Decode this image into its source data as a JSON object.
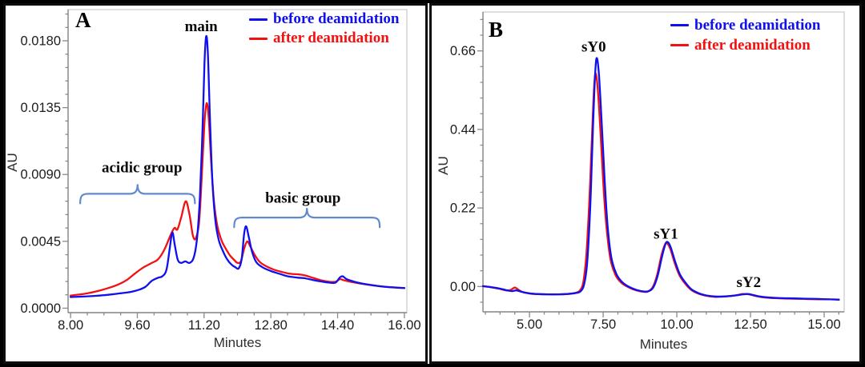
{
  "chart_data": [
    {
      "type": "line",
      "panel_label": "A",
      "xlabel": "Minutes",
      "ylabel": "AU",
      "xlim": [
        7.94,
        16.06
      ],
      "ylim": [
        -0.0003,
        0.0201
      ],
      "grid": false,
      "legend_position": "top-right",
      "x_major_ticks": [
        {
          "v": 8.0,
          "label": "8.00"
        },
        {
          "v": 9.6,
          "label": "9.60"
        },
        {
          "v": 11.2,
          "label": "11.20"
        },
        {
          "v": 12.8,
          "label": "12.80"
        },
        {
          "v": 14.4,
          "label": "14.40"
        },
        {
          "v": 16.0,
          "label": "16.00"
        }
      ],
      "x_minor_step": 0.4,
      "y_major_ticks": [
        {
          "v": 0.0,
          "label": "0.0000"
        },
        {
          "v": 0.0045,
          "label": "0.0045"
        },
        {
          "v": 0.009,
          "label": "0.0090"
        },
        {
          "v": 0.0135,
          "label": "0.0135"
        },
        {
          "v": 0.018,
          "label": "0.0180"
        }
      ],
      "y_minor_step": 0.0009,
      "series": [
        {
          "name": "before deamidation",
          "color": "#1010ee",
          "points": [
            [
              8.0,
              0.00075
            ],
            [
              8.3,
              0.00078
            ],
            [
              8.6,
              0.00083
            ],
            [
              8.9,
              0.0009
            ],
            [
              9.2,
              0.001
            ],
            [
              9.45,
              0.0011
            ],
            [
              9.65,
              0.00125
            ],
            [
              9.8,
              0.00145
            ],
            [
              9.95,
              0.00185
            ],
            [
              10.1,
              0.00205
            ],
            [
              10.2,
              0.00215
            ],
            [
              10.3,
              0.0026
            ],
            [
              10.38,
              0.0041
            ],
            [
              10.44,
              0.0051
            ],
            [
              10.5,
              0.0042
            ],
            [
              10.57,
              0.00325
            ],
            [
              10.65,
              0.00305
            ],
            [
              10.75,
              0.00315
            ],
            [
              10.85,
              0.00305
            ],
            [
              10.95,
              0.0034
            ],
            [
              11.03,
              0.0047
            ],
            [
              11.1,
              0.0075
            ],
            [
              11.16,
              0.0118
            ],
            [
              11.21,
              0.0165
            ],
            [
              11.25,
              0.0183
            ],
            [
              11.29,
              0.0172
            ],
            [
              11.34,
              0.0128
            ],
            [
              11.4,
              0.0085
            ],
            [
              11.47,
              0.0059
            ],
            [
              11.55,
              0.0046
            ],
            [
              11.65,
              0.00385
            ],
            [
              11.75,
              0.0033
            ],
            [
              11.85,
              0.00295
            ],
            [
              11.95,
              0.00275
            ],
            [
              12.03,
              0.00268
            ],
            [
              12.1,
              0.0033
            ],
            [
              12.16,
              0.005
            ],
            [
              12.21,
              0.00551
            ],
            [
              12.27,
              0.0048
            ],
            [
              12.35,
              0.0038
            ],
            [
              12.45,
              0.0031
            ],
            [
              12.6,
              0.00275
            ],
            [
              12.8,
              0.0025
            ],
            [
              13.0,
              0.00232
            ],
            [
              13.2,
              0.00215
            ],
            [
              13.45,
              0.00205
            ],
            [
              13.6,
              0.00202
            ],
            [
              13.8,
              0.0019
            ],
            [
              14.0,
              0.0018
            ],
            [
              14.2,
              0.00172
            ],
            [
              14.35,
              0.00172
            ],
            [
              14.45,
              0.00205
            ],
            [
              14.52,
              0.00215
            ],
            [
              14.62,
              0.00195
            ],
            [
              14.8,
              0.00178
            ],
            [
              15.0,
              0.00165
            ],
            [
              15.3,
              0.00152
            ],
            [
              15.6,
              0.00142
            ],
            [
              16.0,
              0.00135
            ]
          ]
        },
        {
          "name": "after deamidation",
          "color": "#f21111",
          "points": [
            [
              8.0,
              0.00085
            ],
            [
              8.3,
              0.00095
            ],
            [
              8.6,
              0.00112
            ],
            [
              8.9,
              0.00135
            ],
            [
              9.15,
              0.0016
            ],
            [
              9.35,
              0.0019
            ],
            [
              9.55,
              0.00235
            ],
            [
              9.75,
              0.00275
            ],
            [
              9.95,
              0.00305
            ],
            [
              10.1,
              0.0033
            ],
            [
              10.25,
              0.00395
            ],
            [
              10.4,
              0.00495
            ],
            [
              10.49,
              0.0054
            ],
            [
              10.56,
              0.0053
            ],
            [
              10.65,
              0.0061
            ],
            [
              10.76,
              0.0072
            ],
            [
              10.85,
              0.0063
            ],
            [
              10.93,
              0.0049
            ],
            [
              11.0,
              0.0047
            ],
            [
              11.08,
              0.0058
            ],
            [
              11.15,
              0.0092
            ],
            [
              11.21,
              0.0125
            ],
            [
              11.26,
              0.0138
            ],
            [
              11.31,
              0.0128
            ],
            [
              11.37,
              0.0098
            ],
            [
              11.44,
              0.0071
            ],
            [
              11.52,
              0.0055
            ],
            [
              11.62,
              0.00455
            ],
            [
              11.72,
              0.004
            ],
            [
              11.82,
              0.00355
            ],
            [
              11.92,
              0.00325
            ],
            [
              12.0,
              0.00305
            ],
            [
              12.08,
              0.00315
            ],
            [
              12.16,
              0.004
            ],
            [
              12.23,
              0.00449
            ],
            [
              12.3,
              0.0042
            ],
            [
              12.4,
              0.00365
            ],
            [
              12.52,
              0.00315
            ],
            [
              12.65,
              0.00288
            ],
            [
              12.85,
              0.00262
            ],
            [
              13.05,
              0.00245
            ],
            [
              13.25,
              0.00232
            ],
            [
              13.45,
              0.00228
            ],
            [
              13.6,
              0.00222
            ],
            [
              13.8,
              0.00205
            ],
            [
              14.0,
              0.00188
            ],
            [
              14.2,
              0.00178
            ],
            [
              14.35,
              0.00178
            ],
            [
              14.45,
              0.00195
            ],
            [
              14.55,
              0.00188
            ],
            [
              14.7,
              0.00178
            ],
            [
              14.9,
              0.00168
            ],
            [
              15.2,
              0.00155
            ],
            [
              15.6,
              0.00143
            ],
            [
              16.0,
              0.00136
            ]
          ]
        }
      ],
      "annotations": [
        {
          "text": "main",
          "x": 11.13,
          "y": 0.019
        }
      ],
      "braces": [
        {
          "label": "acidic group",
          "x1": 8.23,
          "x2": 10.98,
          "y": 0.0077,
          "label_x": 9.71,
          "label_y": 0.0095
        },
        {
          "label": "basic group",
          "x1": 11.92,
          "x2": 15.41,
          "y": 0.0061,
          "label_x": 13.57,
          "label_y": 0.00745
        }
      ],
      "brace_color": "#6189cf"
    },
    {
      "type": "line",
      "panel_label": "B",
      "xlabel": "Minutes",
      "ylabel": "AU",
      "xlim": [
        3.42,
        15.68
      ],
      "ylim": [
        -0.071,
        0.769
      ],
      "grid": false,
      "legend_position": "top-right",
      "x_major_ticks": [
        {
          "v": 5.0,
          "label": "5.00"
        },
        {
          "v": 7.5,
          "label": "7.50"
        },
        {
          "v": 10.0,
          "label": "10.00"
        },
        {
          "v": 12.5,
          "label": "12.50"
        },
        {
          "v": 15.0,
          "label": "15.00"
        }
      ],
      "x_minor_step": 0.5,
      "y_major_ticks": [
        {
          "v": 0.0,
          "label": "0.00"
        },
        {
          "v": 0.22,
          "label": "0.22"
        },
        {
          "v": 0.44,
          "label": "0.44"
        },
        {
          "v": 0.66,
          "label": "0.66"
        }
      ],
      "y_minor_step": 0.044,
      "series": [
        {
          "name": "before deamidation",
          "color": "#1010ee",
          "points": [
            [
              3.42,
              0.001
            ],
            [
              3.7,
              -0.002
            ],
            [
              4.0,
              -0.006
            ],
            [
              4.2,
              -0.01
            ],
            [
              4.4,
              -0.013
            ],
            [
              4.55,
              -0.011
            ],
            [
              4.7,
              -0.014
            ],
            [
              4.9,
              -0.018
            ],
            [
              5.2,
              -0.021
            ],
            [
              5.6,
              -0.022
            ],
            [
              6.0,
              -0.022
            ],
            [
              6.3,
              -0.021
            ],
            [
              6.6,
              -0.018
            ],
            [
              6.75,
              -0.012
            ],
            [
              6.85,
              0.005
            ],
            [
              6.95,
              0.06
            ],
            [
              7.05,
              0.2
            ],
            [
              7.12,
              0.36
            ],
            [
              7.2,
              0.55
            ],
            [
              7.27,
              0.638
            ],
            [
              7.35,
              0.6
            ],
            [
              7.45,
              0.46
            ],
            [
              7.55,
              0.3
            ],
            [
              7.65,
              0.17
            ],
            [
              7.78,
              0.08
            ],
            [
              7.95,
              0.035
            ],
            [
              8.15,
              0.012
            ],
            [
              8.4,
              -0.002
            ],
            [
              8.65,
              -0.01
            ],
            [
              8.9,
              -0.014
            ],
            [
              9.05,
              -0.013
            ],
            [
              9.2,
              -0.003
            ],
            [
              9.35,
              0.03
            ],
            [
              9.5,
              0.085
            ],
            [
              9.62,
              0.12
            ],
            [
              9.7,
              0.124
            ],
            [
              9.8,
              0.108
            ],
            [
              9.95,
              0.068
            ],
            [
              10.1,
              0.035
            ],
            [
              10.3,
              0.01
            ],
            [
              10.5,
              -0.008
            ],
            [
              10.75,
              -0.019
            ],
            [
              11.0,
              -0.025
            ],
            [
              11.3,
              -0.028
            ],
            [
              11.6,
              -0.028
            ],
            [
              11.9,
              -0.026
            ],
            [
              12.1,
              -0.024
            ],
            [
              12.25,
              -0.022
            ],
            [
              12.4,
              -0.021
            ],
            [
              12.55,
              -0.023
            ],
            [
              12.75,
              -0.027
            ],
            [
              13.0,
              -0.03
            ],
            [
              13.4,
              -0.032
            ],
            [
              13.8,
              -0.033
            ],
            [
              14.3,
              -0.034
            ],
            [
              14.8,
              -0.035
            ],
            [
              15.2,
              -0.036
            ],
            [
              15.5,
              -0.037
            ]
          ]
        },
        {
          "name": "after deamidation",
          "color": "#f21111",
          "points": [
            [
              3.42,
              0.001
            ],
            [
              3.7,
              -0.002
            ],
            [
              4.0,
              -0.007
            ],
            [
              4.2,
              -0.011
            ],
            [
              4.35,
              -0.01
            ],
            [
              4.5,
              -0.003
            ],
            [
              4.62,
              -0.009
            ],
            [
              4.75,
              -0.015
            ],
            [
              4.95,
              -0.019
            ],
            [
              5.2,
              -0.021
            ],
            [
              5.6,
              -0.022
            ],
            [
              6.0,
              -0.022
            ],
            [
              6.3,
              -0.021
            ],
            [
              6.6,
              -0.017
            ],
            [
              6.72,
              -0.01
            ],
            [
              6.82,
              0.01
            ],
            [
              6.92,
              0.08
            ],
            [
              7.02,
              0.22
            ],
            [
              7.1,
              0.38
            ],
            [
              7.17,
              0.52
            ],
            [
              7.23,
              0.595
            ],
            [
              7.31,
              0.56
            ],
            [
              7.41,
              0.43
            ],
            [
              7.51,
              0.28
            ],
            [
              7.62,
              0.16
            ],
            [
              7.75,
              0.075
            ],
            [
              7.92,
              0.032
            ],
            [
              8.12,
              0.01
            ],
            [
              8.38,
              -0.003
            ],
            [
              8.62,
              -0.011
            ],
            [
              8.88,
              -0.015
            ],
            [
              9.02,
              -0.014
            ],
            [
              9.18,
              -0.002
            ],
            [
              9.33,
              0.032
            ],
            [
              9.48,
              0.088
            ],
            [
              9.6,
              0.118
            ],
            [
              9.67,
              0.121
            ],
            [
              9.78,
              0.105
            ],
            [
              9.93,
              0.065
            ],
            [
              10.08,
              0.033
            ],
            [
              10.28,
              0.008
            ],
            [
              10.48,
              -0.009
            ],
            [
              10.73,
              -0.02
            ],
            [
              11.0,
              -0.026
            ],
            [
              11.3,
              -0.029
            ],
            [
              11.6,
              -0.028
            ],
            [
              11.9,
              -0.026
            ],
            [
              12.1,
              -0.023
            ],
            [
              12.25,
              -0.021
            ],
            [
              12.4,
              -0.0215
            ],
            [
              12.55,
              -0.024
            ],
            [
              12.75,
              -0.028
            ],
            [
              13.0,
              -0.031
            ],
            [
              13.4,
              -0.033
            ],
            [
              13.8,
              -0.034
            ],
            [
              14.3,
              -0.035
            ],
            [
              14.8,
              -0.036
            ],
            [
              15.2,
              -0.036
            ],
            [
              15.5,
              -0.037
            ]
          ]
        }
      ],
      "annotations": [
        {
          "text": "sY0",
          "x": 7.18,
          "y": 0.673
        },
        {
          "text": "sY1",
          "x": 9.63,
          "y": 0.149
        },
        {
          "text": "sY2",
          "x": 12.44,
          "y": 0.013
        }
      ],
      "braces": [],
      "brace_color": "#6189cf"
    }
  ]
}
